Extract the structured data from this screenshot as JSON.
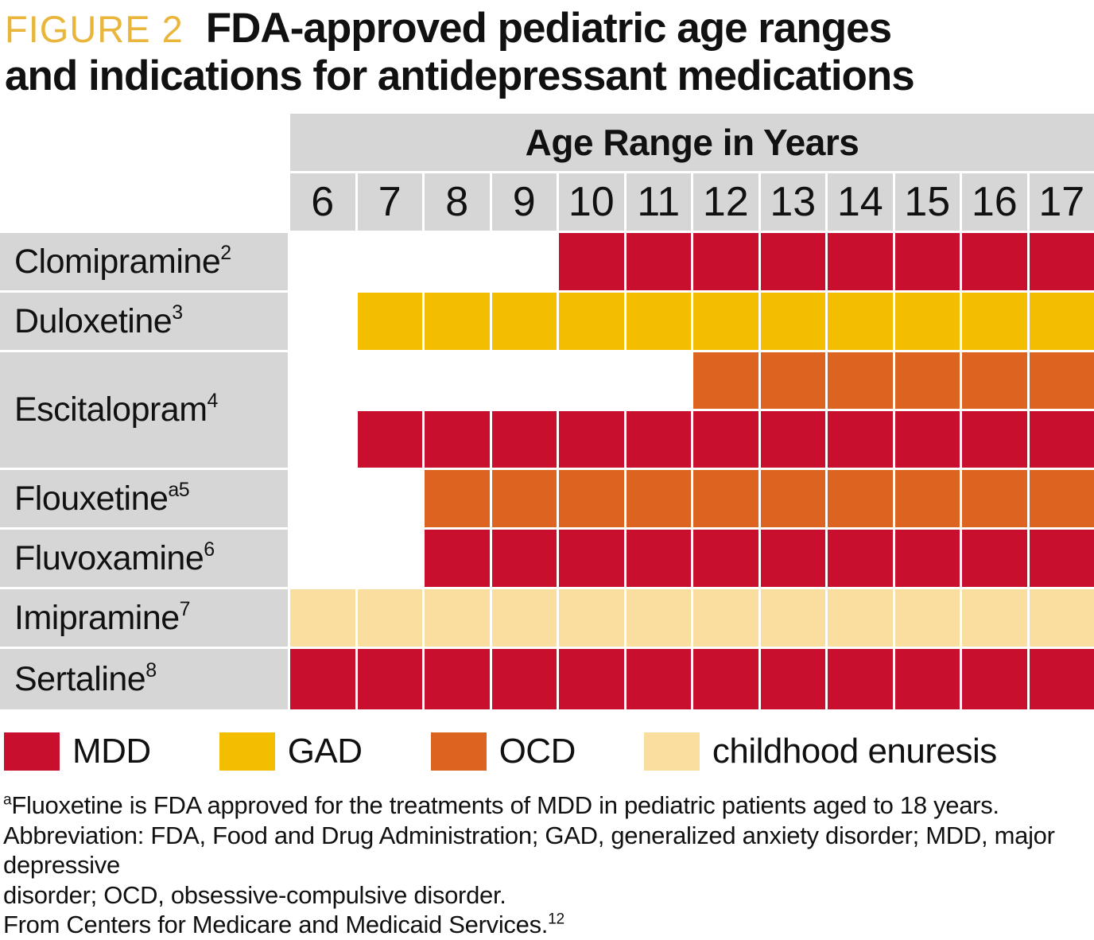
{
  "header": {
    "figure_label": "FIGURE 2",
    "title_line1": "FDA-approved pediatric age ranges",
    "title_line2": "and indications for antidepressant medications"
  },
  "colors": {
    "figure_label_gold": "#E9B53B",
    "header_grey": "#D6D6D6",
    "mdd": "#C8102E",
    "gad": "#F4BE00",
    "ocd": "#DC6420",
    "enuresis": "#F9DEA0"
  },
  "chart_data": {
    "type": "table",
    "column_header": "Age Range in Years",
    "ages": [
      6,
      7,
      8,
      9,
      10,
      11,
      12,
      13,
      14,
      15,
      16,
      17
    ],
    "rows": [
      {
        "label": "Clomipramine",
        "sup": "2",
        "bands": [
          {
            "indication": "MDD",
            "color_key": "mdd",
            "age_start": 10,
            "age_end": 17
          }
        ]
      },
      {
        "label": "Duloxetine",
        "sup": "3",
        "bands": [
          {
            "indication": "GAD",
            "color_key": "gad",
            "age_start": 7,
            "age_end": 17
          }
        ]
      },
      {
        "label": "Escitalopram",
        "sup": "4",
        "bands": [
          {
            "indication": "OCD",
            "color_key": "ocd",
            "age_start": 12,
            "age_end": 17
          },
          {
            "indication": "MDD",
            "color_key": "mdd",
            "age_start": 7,
            "age_end": 17
          }
        ]
      },
      {
        "label": "Flouxetine",
        "sup": "a5",
        "bands": [
          {
            "indication": "OCD",
            "color_key": "ocd",
            "age_start": 8,
            "age_end": 17
          }
        ]
      },
      {
        "label": "Fluvoxamine",
        "sup": "6",
        "bands": [
          {
            "indication": "MDD",
            "color_key": "mdd",
            "age_start": 8,
            "age_end": 17
          }
        ]
      },
      {
        "label": "Imipramine",
        "sup": "7",
        "bands": [
          {
            "indication": "childhood enuresis",
            "color_key": "enuresis",
            "age_start": 6,
            "age_end": 17
          }
        ]
      },
      {
        "label": "Sertaline",
        "sup": "8",
        "bands": [
          {
            "indication": "MDD",
            "color_key": "mdd",
            "age_start": 6,
            "age_end": 17
          }
        ]
      }
    ],
    "legend": [
      {
        "key": "mdd",
        "label": "MDD",
        "color": "#C8102E"
      },
      {
        "key": "gad",
        "label": "GAD",
        "color": "#F4BE00"
      },
      {
        "key": "ocd",
        "label": "OCD",
        "color": "#DC6420"
      },
      {
        "key": "enuresis",
        "label": "childhood enuresis",
        "color": "#F9DEA0"
      }
    ],
    "legend_position": "bottom",
    "grid": "white gaps between cells"
  },
  "footnotes": [
    {
      "sup_before": "a",
      "text": "Fluoxetine is FDA approved for the treatments of MDD in pediatric patients aged to 18 years."
    },
    {
      "text": "Abbreviation: FDA, Food and Drug Administration; GAD, generalized anxiety disorder; MDD, major depressive"
    },
    {
      "text": "disorder; OCD, obsessive-compulsive disorder."
    },
    {
      "text": "From Centers for Medicare and Medicaid Services.",
      "sup_after": "12"
    }
  ]
}
